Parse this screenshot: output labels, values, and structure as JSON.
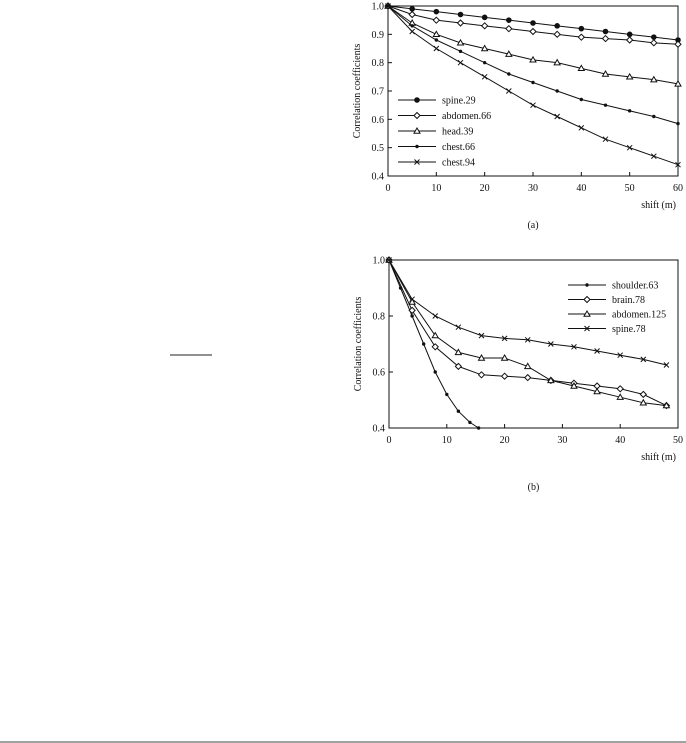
{
  "chart_data": [
    {
      "type": "line",
      "caption": "(a)",
      "xlabel": "shift (m)",
      "ylabel": "Correlation coefficients",
      "xlim": [
        0,
        60
      ],
      "xticks": [
        0,
        10,
        20,
        30,
        40,
        50,
        60
      ],
      "ylim": [
        0.4,
        1.0
      ],
      "yticks": [
        0.4,
        0.5,
        0.6,
        0.7,
        0.8,
        0.9,
        {
          "value": 1.0,
          "label": "1.0"
        }
      ],
      "legend": "lower-left",
      "series": [
        {
          "name": "spine.29",
          "color": "#111111",
          "marker": "circle",
          "x": [
            0,
            5,
            10,
            15,
            20,
            25,
            30,
            35,
            40,
            45,
            50,
            55,
            60
          ],
          "values": [
            1.0,
            0.99,
            0.98,
            0.97,
            0.96,
            0.95,
            0.94,
            0.93,
            0.92,
            0.91,
            0.9,
            0.89,
            0.88
          ]
        },
        {
          "name": "abdomen.66",
          "color": "#111111",
          "marker": "diamond",
          "x": [
            0,
            5,
            10,
            15,
            20,
            25,
            30,
            35,
            40,
            45,
            50,
            55,
            60
          ],
          "values": [
            1.0,
            0.97,
            0.95,
            0.94,
            0.93,
            0.92,
            0.91,
            0.9,
            0.89,
            0.885,
            0.88,
            0.87,
            0.865
          ]
        },
        {
          "name": "head.39",
          "color": "#111111",
          "marker": "triangle",
          "x": [
            0,
            5,
            10,
            15,
            20,
            25,
            30,
            35,
            40,
            45,
            50,
            55,
            60
          ],
          "values": [
            1.0,
            0.94,
            0.9,
            0.87,
            0.85,
            0.83,
            0.81,
            0.8,
            0.78,
            0.76,
            0.75,
            0.74,
            0.725
          ]
        },
        {
          "name": "chest.66",
          "color": "#111111",
          "marker": "dot",
          "x": [
            0,
            5,
            10,
            15,
            20,
            25,
            30,
            35,
            40,
            45,
            50,
            55,
            60
          ],
          "values": [
            1.0,
            0.93,
            0.88,
            0.84,
            0.8,
            0.76,
            0.73,
            0.7,
            0.67,
            0.65,
            0.63,
            0.61,
            0.585
          ]
        },
        {
          "name": "chest.94",
          "color": "#111111",
          "marker": "x",
          "x": [
            0,
            5,
            10,
            15,
            20,
            25,
            30,
            35,
            40,
            45,
            50,
            55,
            60
          ],
          "values": [
            1.0,
            0.91,
            0.85,
            0.8,
            0.75,
            0.7,
            0.65,
            0.61,
            0.57,
            0.53,
            0.5,
            0.47,
            0.44
          ]
        }
      ]
    },
    {
      "type": "line",
      "caption": "(b)",
      "xlabel": "shift (m)",
      "ylabel": "Correlation coefficients",
      "xlim": [
        0,
        50
      ],
      "xticks": [
        0,
        10,
        20,
        30,
        40,
        50
      ],
      "ylim": [
        0.4,
        1.0
      ],
      "yticks": [
        0.4,
        0.6,
        0.8,
        {
          "value": 1.0,
          "label": "1.0"
        }
      ],
      "legend": "upper-right",
      "series": [
        {
          "name": "shoulder.63",
          "color": "#111111",
          "marker": "dot",
          "x": [
            0,
            2,
            4,
            6,
            8,
            10,
            12,
            14,
            15.5
          ],
          "values": [
            1.0,
            0.9,
            0.8,
            0.7,
            0.6,
            0.52,
            0.46,
            0.42,
            0.4
          ]
        },
        {
          "name": "brain.78",
          "color": "#111111",
          "marker": "diamond",
          "x": [
            0,
            4,
            8,
            12,
            16,
            20,
            24,
            28,
            32,
            36,
            40,
            44,
            48
          ],
          "values": [
            1.0,
            0.82,
            0.69,
            0.62,
            0.59,
            0.585,
            0.58,
            0.57,
            0.56,
            0.55,
            0.54,
            0.52,
            0.48
          ]
        },
        {
          "name": "abdomen.125",
          "color": "#111111",
          "marker": "triangle",
          "x": [
            0,
            4,
            8,
            12,
            16,
            20,
            24,
            28,
            32,
            36,
            40,
            44,
            48
          ],
          "values": [
            1.0,
            0.85,
            0.73,
            0.67,
            0.65,
            0.65,
            0.62,
            0.57,
            0.55,
            0.53,
            0.51,
            0.49,
            0.48
          ]
        },
        {
          "name": "spine.78",
          "color": "#111111",
          "marker": "x",
          "x": [
            0,
            4,
            8,
            12,
            16,
            20,
            24,
            28,
            32,
            36,
            40,
            44,
            48
          ],
          "values": [
            1.0,
            0.86,
            0.8,
            0.76,
            0.73,
            0.72,
            0.715,
            0.7,
            0.69,
            0.675,
            0.66,
            0.645,
            0.625
          ]
        }
      ]
    }
  ]
}
